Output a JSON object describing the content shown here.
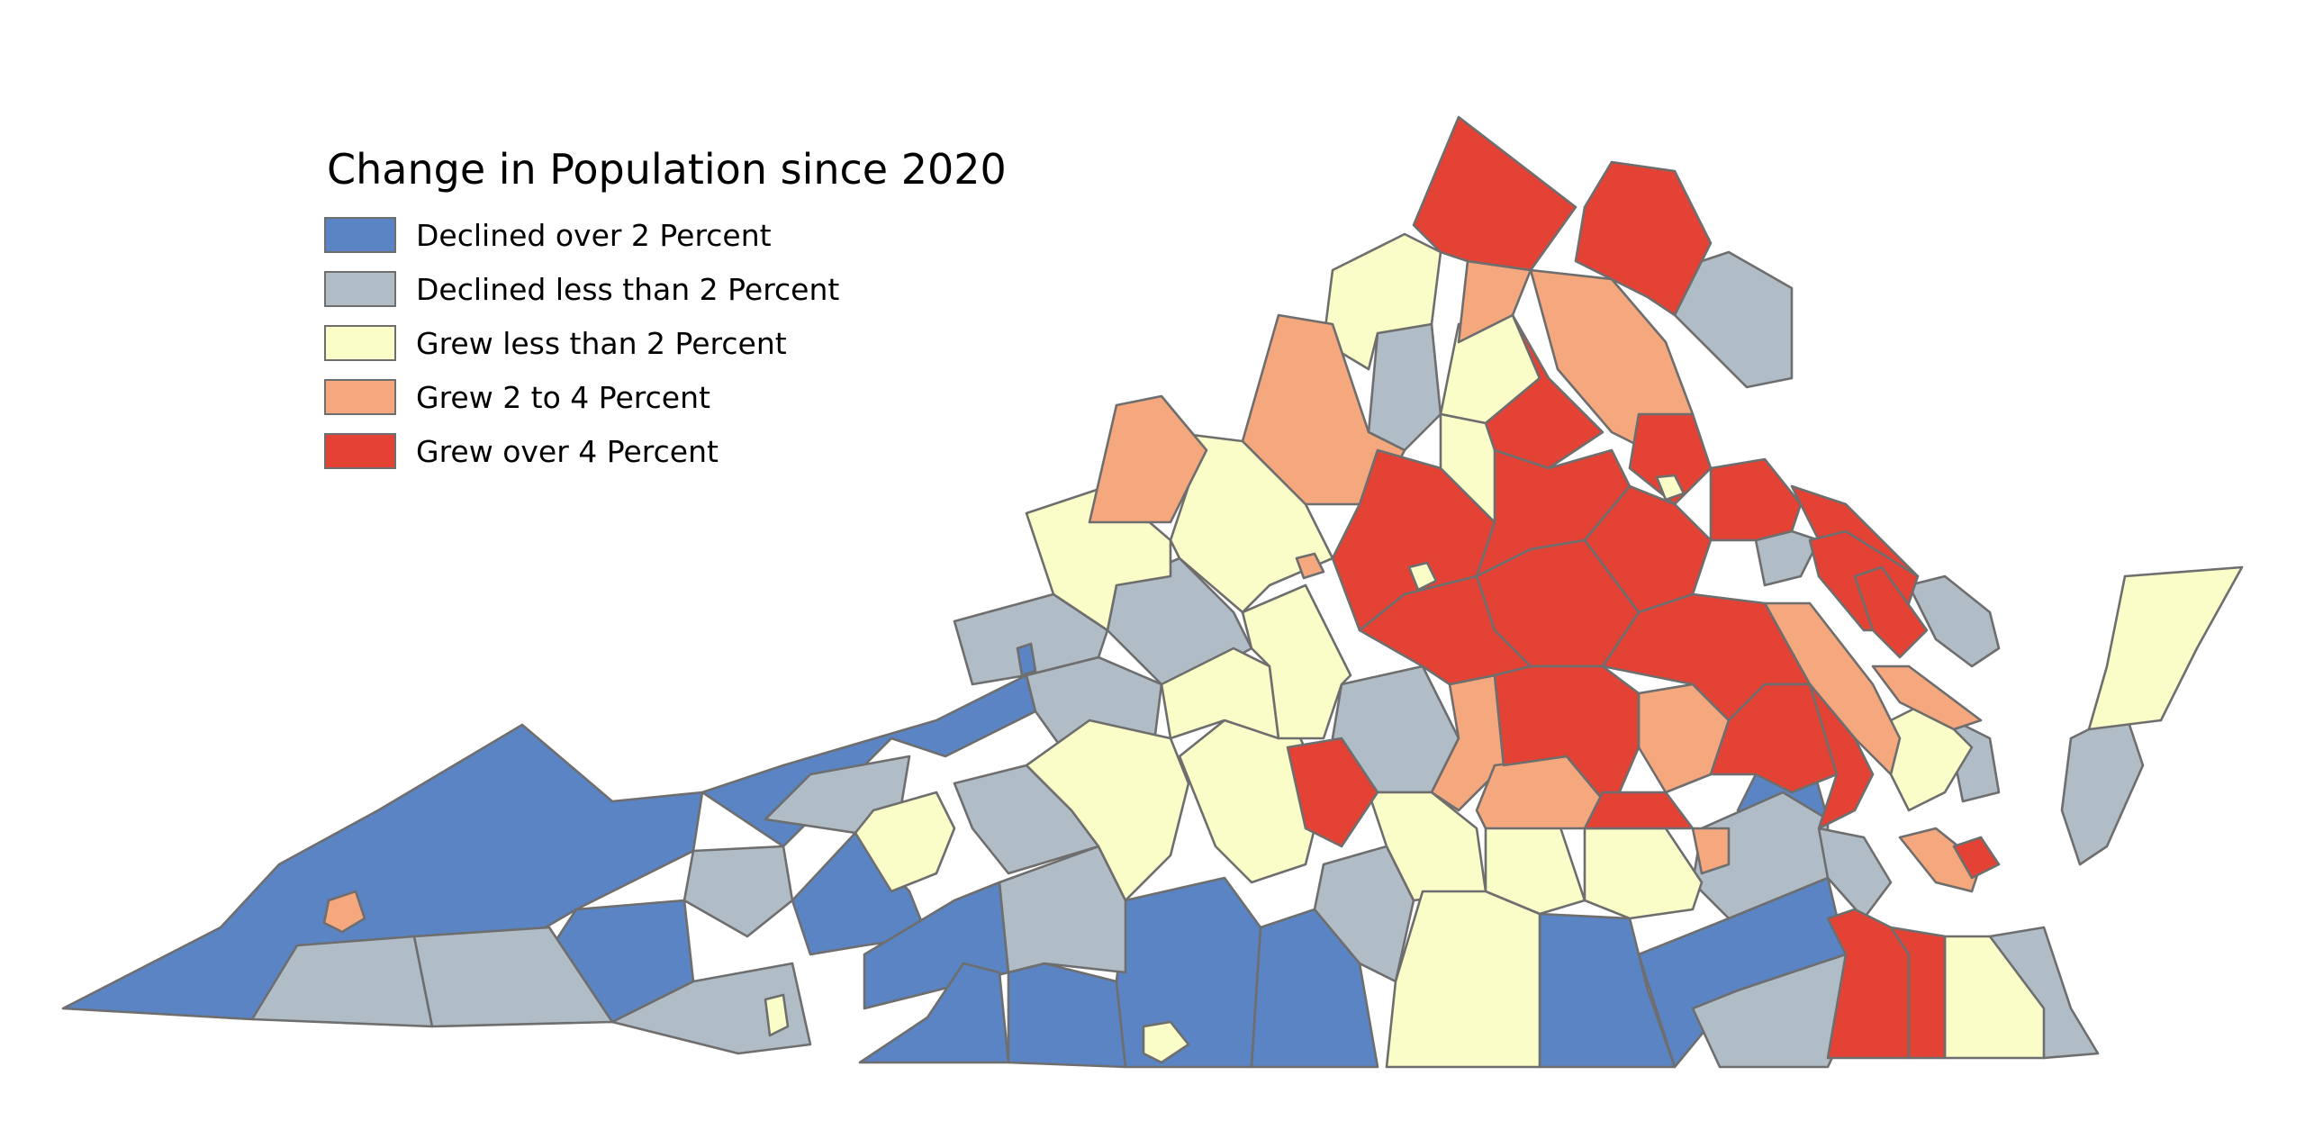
{
  "legend": {
    "title": "Change in Population since 2020",
    "items": [
      {
        "key": "declined_over_2",
        "label": "Declined over 2 Percent",
        "color": "#5b84c4"
      },
      {
        "key": "declined_under_2",
        "label": "Declined less than 2 Percent",
        "color": "#b1bdc6"
      },
      {
        "key": "grew_under_2",
        "label": "Grew less than 2 Percent",
        "color": "#fbfdc8"
      },
      {
        "key": "grew_2_to_4",
        "label": "Grew 2 to 4 Percent",
        "color": "#f5a77d"
      },
      {
        "key": "grew_over_4",
        "label": "Grew over 4 Percent",
        "color": "#e34235"
      }
    ]
  },
  "map": {
    "region": "Virginia",
    "unit": "county",
    "border_color": "#6e6e6e"
  }
}
